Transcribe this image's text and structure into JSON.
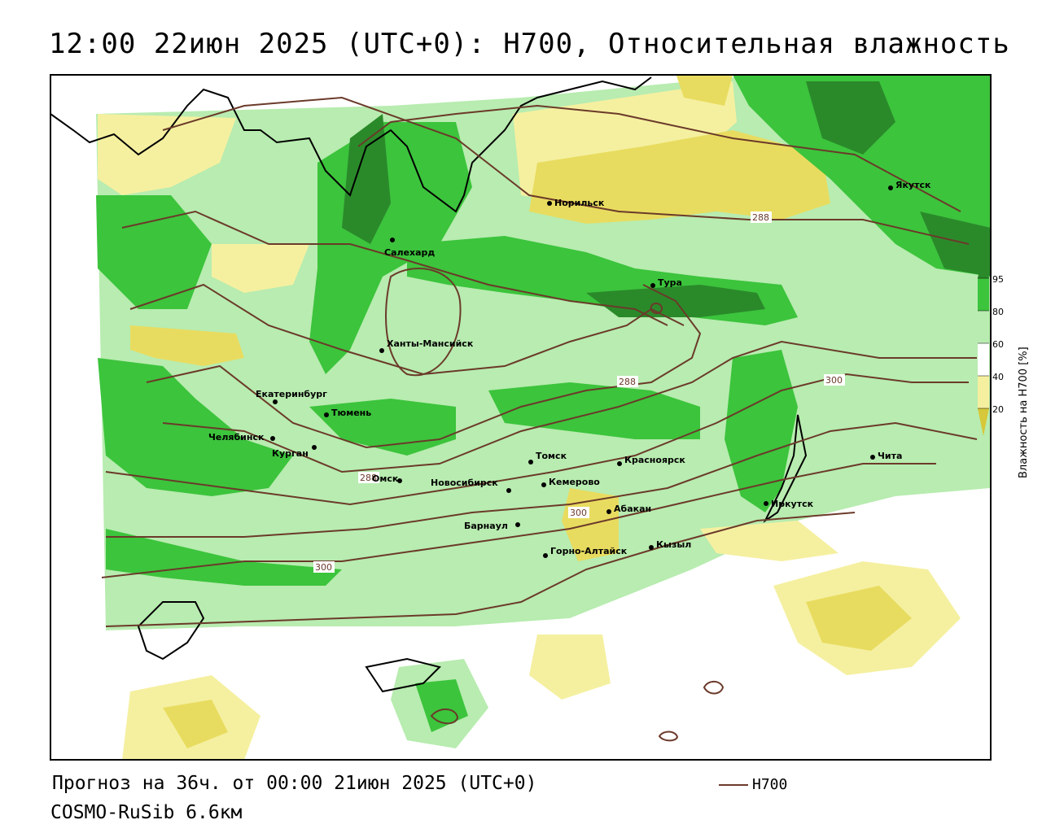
{
  "header": {
    "title": "12:00 22июн 2025 (UTC+0): H700, Относительная влажность"
  },
  "footer": {
    "forecast": "Прогноз на 36ч. от 00:00 21июн 2025 (UTC+0)",
    "model": "COSMO-RuSib 6.6км"
  },
  "legend": {
    "line_label": "H700",
    "line_color": "#6b3a2a"
  },
  "colorbar": {
    "title": "Влажность на H700 [%]",
    "ticks": [
      "95",
      "80",
      "60",
      "40",
      "20"
    ],
    "colors": {
      "c95": "#2a8a2a",
      "c80": "#3cc43c",
      "c60": "#b8ecb0",
      "c40": "#ffffff",
      "c20": "#f5f0a0",
      "c0": "#d6c83a"
    }
  },
  "cities": [
    {
      "name": "Норильск"
    },
    {
      "name": "Якутск"
    },
    {
      "name": "Салехард"
    },
    {
      "name": "Тура"
    },
    {
      "name": "Ханты-Мансийск"
    },
    {
      "name": "Екатеринбург"
    },
    {
      "name": "Тюмень"
    },
    {
      "name": "Челябинск"
    },
    {
      "name": "Курган"
    },
    {
      "name": "Омск"
    },
    {
      "name": "Новосибирск"
    },
    {
      "name": "Томск"
    },
    {
      "name": "Кемерово"
    },
    {
      "name": "Красноярск"
    },
    {
      "name": "Барнаул"
    },
    {
      "name": "Абакан"
    },
    {
      "name": "Горно-Алтайск"
    },
    {
      "name": "Кызыл"
    },
    {
      "name": "Иркутск"
    },
    {
      "name": "Чита"
    }
  ],
  "contour_labels": [
    "288",
    "288",
    "288",
    "300",
    "300",
    "300"
  ]
}
